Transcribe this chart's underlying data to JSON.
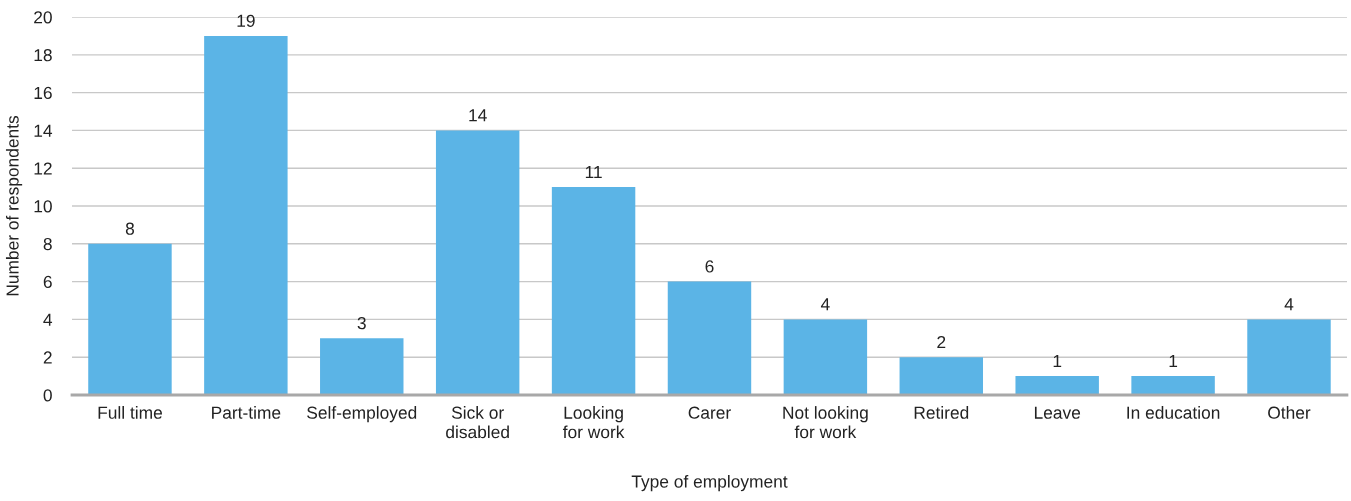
{
  "chart_data": {
    "type": "bar",
    "xlabel": "Type of employment",
    "ylabel": "Number of respondents",
    "categories": [
      "Full time",
      "Part-time",
      "Self-employed",
      "Sick or\ndisabled",
      "Looking\nfor work",
      "Carer",
      "Not looking\nfor work",
      "Retired",
      "Leave",
      "In education",
      "Other"
    ],
    "values": [
      8,
      19,
      3,
      14,
      11,
      6,
      4,
      2,
      1,
      1,
      4
    ],
    "color": "#5bb4e6",
    "ylim": [
      0,
      20
    ],
    "yticks": [
      0,
      2,
      4,
      6,
      8,
      10,
      12,
      14,
      16,
      18,
      20
    ],
    "grid": "y",
    "data_labels": true
  }
}
